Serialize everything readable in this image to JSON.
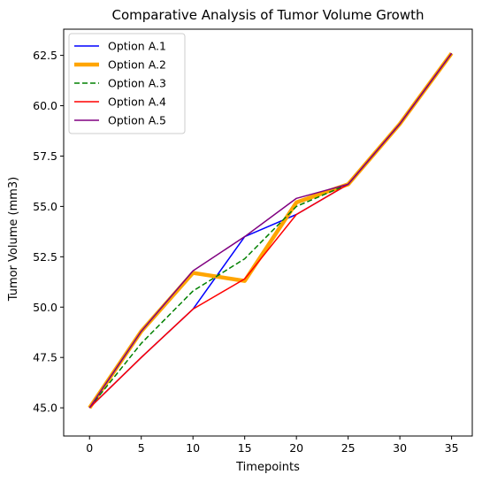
{
  "chart_data": {
    "type": "line",
    "title": "Comparative Analysis of Tumor Volume Growth",
    "xlabel": "Timepoints",
    "ylabel": "Tumor Volume (mm3)",
    "xlim": [
      -2.5,
      37.0
    ],
    "ylim": [
      43.6,
      63.8
    ],
    "xticks": [
      0,
      5,
      10,
      15,
      20,
      25,
      30,
      35
    ],
    "yticks": [
      45.0,
      47.5,
      50.0,
      52.5,
      55.0,
      57.5,
      60.0,
      62.5
    ],
    "ytick_labels": [
      "45.0",
      "47.5",
      "50.0",
      "52.5",
      "55.0",
      "57.5",
      "60.0",
      "62.5"
    ],
    "x": [
      0,
      5,
      10,
      15,
      20,
      25,
      30,
      35
    ],
    "grid": false,
    "legend_position": "top-left",
    "series": [
      {
        "name": "Option A.1",
        "values": [
          45.0,
          47.5,
          49.9,
          53.5,
          54.6,
          56.1,
          59.1,
          62.6
        ],
        "color": "#0000ff",
        "style": "solid",
        "width": "thin"
      },
      {
        "name": "Option A.2",
        "values": [
          45.0,
          48.8,
          51.7,
          51.3,
          55.2,
          56.1,
          59.1,
          62.6
        ],
        "color": "#ffa500",
        "style": "solid",
        "width": "thick"
      },
      {
        "name": "Option A.3",
        "values": [
          45.0,
          48.2,
          50.8,
          52.4,
          55.0,
          56.1,
          59.1,
          62.6
        ],
        "color": "#008000",
        "style": "dashed",
        "width": "thin"
      },
      {
        "name": "Option A.4",
        "values": [
          45.0,
          47.5,
          49.9,
          51.4,
          54.6,
          56.1,
          59.1,
          62.6
        ],
        "color": "#ff0000",
        "style": "solid",
        "width": "thin"
      },
      {
        "name": "Option A.5",
        "values": [
          45.0,
          48.8,
          51.8,
          53.5,
          55.4,
          56.1,
          59.1,
          62.6
        ],
        "color": "#800080",
        "style": "solid",
        "width": "thin"
      }
    ]
  }
}
